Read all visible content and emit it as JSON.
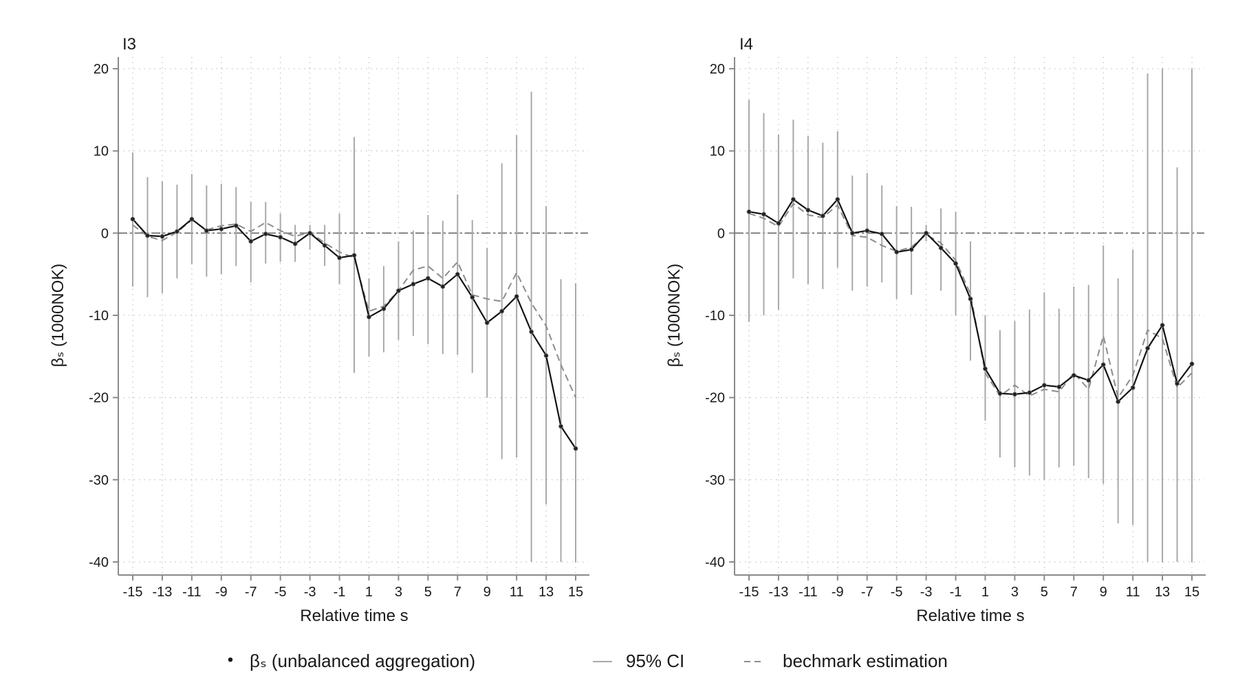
{
  "chart_data": [
    {
      "type": "line",
      "panel_title": "I3",
      "xlabel": "Relative time s",
      "ylabel": "βₛ (1000NOK)",
      "xlim": [
        -15,
        15
      ],
      "ylim": [
        -40,
        20
      ],
      "xticks": [
        -15,
        -13,
        -11,
        -9,
        -7,
        -5,
        -3,
        -1,
        1,
        3,
        5,
        7,
        9,
        11,
        13,
        15
      ],
      "yticks": [
        20,
        10,
        0,
        -10,
        -20,
        -30,
        -40
      ],
      "grid": true,
      "x": [
        -15,
        -14,
        -13,
        -12,
        -11,
        -10,
        -9,
        -8,
        -7,
        -6,
        -5,
        -4,
        -3,
        -2,
        -1,
        0,
        1,
        2,
        3,
        4,
        5,
        6,
        7,
        8,
        9,
        10,
        11,
        12,
        13,
        14,
        15
      ],
      "series": [
        {
          "name": "βₛ (unbalanced aggregation)",
          "style": "solid-with-points",
          "values": [
            1.7,
            -0.3,
            -0.4,
            0.2,
            1.7,
            0.3,
            0.5,
            0.9,
            -1.0,
            -0.1,
            -0.5,
            -1.3,
            0.0,
            -1.5,
            -3.0,
            -2.7,
            -10.2,
            -9.2,
            -7.0,
            -6.2,
            -5.5,
            -6.5,
            -5.0,
            -7.8,
            -10.9,
            -9.5,
            -7.7,
            -12.0,
            -14.9,
            -23.5,
            -26.2
          ]
        },
        {
          "name": "bechmark estimation",
          "style": "dashed",
          "values": [
            1.0,
            -0.4,
            -0.9,
            0.1,
            1.6,
            0.4,
            0.9,
            1.1,
            0.2,
            1.3,
            0.3,
            -0.4,
            0.1,
            -1.2,
            -2.3,
            -3.0,
            -9.5,
            -8.9,
            -7.0,
            -4.5,
            -4.0,
            -5.5,
            -3.5,
            -7.5,
            -8.0,
            -8.3,
            -4.8,
            -8.5,
            -11.3,
            -16.0,
            -20.0
          ]
        },
        {
          "name": "95% CI",
          "style": "vertical-bars",
          "lower": [
            -6.5,
            -7.8,
            -7.3,
            -5.5,
            -3.8,
            -5.3,
            -5.0,
            -4.0,
            -6.0,
            -3.7,
            -3.5,
            -3.5,
            -2.0,
            -4.0,
            -6.2,
            -17.0,
            -15.0,
            -14.5,
            -13.0,
            -12.5,
            -13.5,
            -14.7,
            -14.8,
            -17.0,
            -20.0,
            -27.5,
            -27.3,
            -40.0,
            -33.0,
            -40.0,
            -40.0
          ],
          "upper": [
            9.8,
            6.8,
            6.3,
            5.9,
            7.2,
            5.8,
            6.0,
            5.6,
            3.8,
            3.8,
            2.4,
            1.0,
            1.0,
            1.0,
            2.4,
            11.7,
            -5.5,
            -4.0,
            -1.0,
            0.3,
            2.2,
            1.5,
            4.7,
            1.6,
            -1.8,
            8.5,
            11.9,
            17.2,
            3.3,
            -5.6,
            -6.1
          ]
        }
      ]
    },
    {
      "type": "line",
      "panel_title": "I4",
      "xlabel": "Relative time s",
      "ylabel": "βₛ (1000NOK)",
      "xlim": [
        -15,
        15
      ],
      "ylim": [
        -40,
        20
      ],
      "xticks": [
        -15,
        -13,
        -11,
        -9,
        -7,
        -5,
        -3,
        -1,
        1,
        3,
        5,
        7,
        9,
        11,
        13,
        15
      ],
      "yticks": [
        20,
        10,
        0,
        -10,
        -20,
        -30,
        -40
      ],
      "grid": true,
      "x": [
        -15,
        -14,
        -13,
        -12,
        -11,
        -10,
        -9,
        -8,
        -7,
        -6,
        -5,
        -4,
        -3,
        -2,
        -1,
        0,
        1,
        2,
        3,
        4,
        5,
        6,
        7,
        8,
        9,
        10,
        11,
        12,
        13,
        14,
        15
      ],
      "series": [
        {
          "name": "βₛ (unbalanced aggregation)",
          "style": "solid-with-points",
          "values": [
            2.6,
            2.3,
            1.2,
            4.1,
            2.8,
            2.1,
            4.1,
            0.0,
            0.3,
            -0.1,
            -2.3,
            -2.0,
            0.0,
            -1.8,
            -3.7,
            -8.0,
            -16.5,
            -19.5,
            -19.6,
            -19.4,
            -18.5,
            -18.7,
            -17.3,
            -17.9,
            -16.0,
            -20.5,
            -18.8,
            -14.0,
            -11.2,
            -18.3,
            -15.9
          ]
        },
        {
          "name": "bechmark estimation",
          "style": "dashed",
          "values": [
            2.4,
            1.8,
            0.8,
            3.6,
            2.2,
            1.9,
            3.4,
            -0.3,
            -0.5,
            -1.5,
            -2.2,
            -1.7,
            -0.2,
            -1.2,
            -3.3,
            -7.4,
            -17.0,
            -19.8,
            -18.5,
            -19.8,
            -19.0,
            -19.3,
            -17.0,
            -19.0,
            -12.5,
            -20.0,
            -17.3,
            -11.8,
            -12.8,
            -18.8,
            -17.0
          ]
        },
        {
          "name": "95% CI",
          "style": "vertical-bars",
          "lower": [
            -10.8,
            -10.0,
            -9.3,
            -5.5,
            -6.2,
            -6.8,
            -4.2,
            -7.0,
            -6.5,
            -6.0,
            -8.0,
            -7.5,
            -1.0,
            -7.0,
            -10.0,
            -15.5,
            -22.8,
            -27.3,
            -28.5,
            -29.5,
            -30.0,
            -28.5,
            -28.3,
            -29.8,
            -30.5,
            -35.3,
            -35.5,
            -40.0,
            -40.0,
            -40.0,
            -40.0
          ],
          "upper": [
            16.2,
            14.6,
            12.0,
            13.8,
            11.8,
            11.0,
            12.4,
            7.0,
            7.3,
            5.8,
            3.3,
            3.2,
            1.0,
            3.0,
            2.6,
            -1.0,
            -10.0,
            -11.8,
            -10.7,
            -9.3,
            -7.2,
            -9.2,
            -6.5,
            -6.3,
            -1.5,
            -5.5,
            -2.0,
            19.4,
            20.0,
            8.0,
            20.0
          ]
        }
      ]
    }
  ],
  "legend": {
    "position": "bottom",
    "items": [
      {
        "marker": "•",
        "label": "βₛ (unbalanced aggregation)"
      },
      {
        "marker": "ci-line",
        "label": "95% CI"
      },
      {
        "marker": "dashed-line",
        "label": "bechmark estimation"
      }
    ]
  },
  "colors": {
    "point_line": "#111111",
    "ci": "#a8a8a8",
    "benchmark": "#8c8c8c",
    "grid": "#c4c4c4",
    "axis": "#8a8a8a",
    "zero_line": "#666666"
  }
}
